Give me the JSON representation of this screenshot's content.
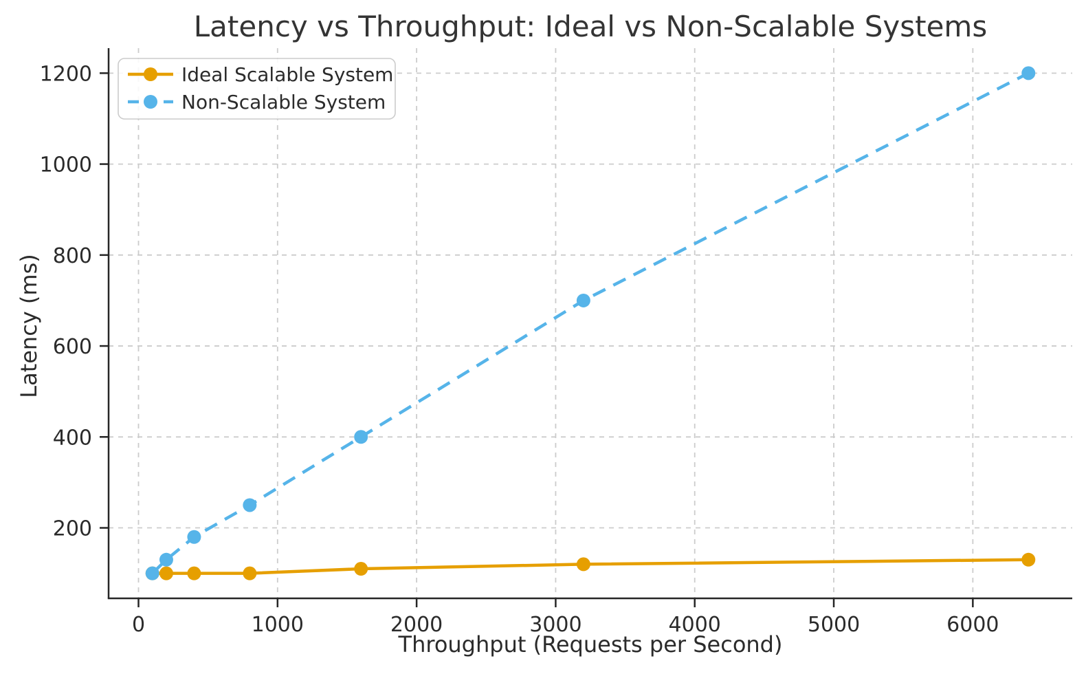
{
  "chart_data": {
    "type": "line",
    "title": "Latency vs Throughput: Ideal vs Non-Scalable Systems",
    "xlabel": "Throughput (Requests per Second)",
    "ylabel": "Latency (ms)",
    "x": [
      100,
      200,
      400,
      800,
      1600,
      3200,
      6400
    ],
    "series": [
      {
        "name": "Ideal Scalable System",
        "values": [
          100,
          100,
          100,
          100,
          110,
          120,
          130
        ],
        "color": "#E69F00",
        "line_style": "solid",
        "marker": "circle"
      },
      {
        "name": "Non-Scalable System",
        "values": [
          100,
          130,
          180,
          250,
          400,
          700,
          1200
        ],
        "color": "#56B4E9",
        "line_style": "dashed",
        "marker": "circle"
      }
    ],
    "xticks": [
      0,
      1000,
      2000,
      3000,
      4000,
      5000,
      6000
    ],
    "yticks": [
      200,
      400,
      600,
      800,
      1000,
      1200
    ],
    "xlim": [
      -215,
      6715
    ],
    "ylim": [
      45,
      1255
    ],
    "grid": true,
    "grid_style": "dashed",
    "legend_position": "upper left",
    "colors": {
      "grid": "#cccccc",
      "spine": "#262626",
      "text": "#2b2b2b",
      "legend_border": "#cccccc",
      "legend_background": "#ffffff",
      "figure_background": "#ffffff"
    }
  }
}
